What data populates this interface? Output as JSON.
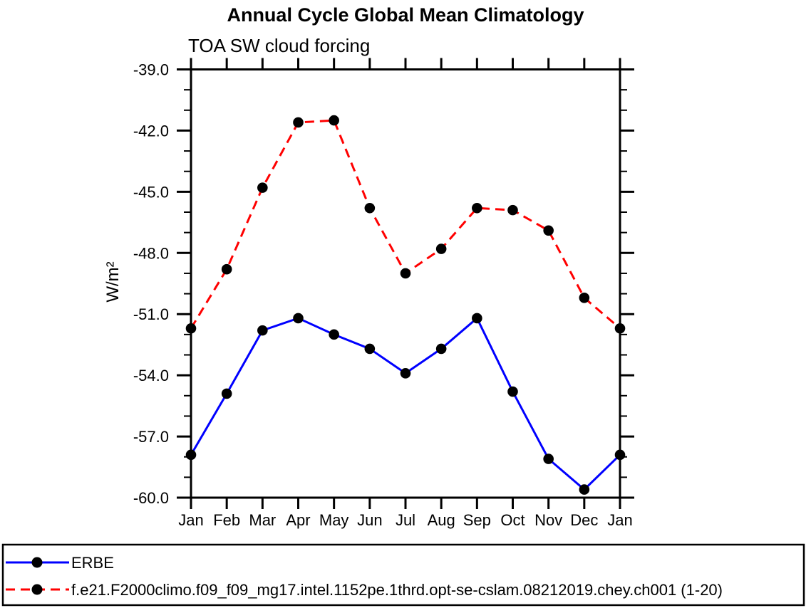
{
  "chart_data": {
    "type": "line",
    "title": "Annual Cycle Global Mean Climatology",
    "subtitle": "TOA SW cloud forcing",
    "ylabel": "W/m²",
    "xlabel": "",
    "categories": [
      "Jan",
      "Feb",
      "Mar",
      "Apr",
      "May",
      "Jun",
      "Jul",
      "Aug",
      "Sep",
      "Oct",
      "Nov",
      "Dec",
      "Jan"
    ],
    "ylim": [
      -60.0,
      -39.0
    ],
    "ytick_major_step": 3.0,
    "ytick_minor_step": 1.0,
    "yticks": [
      {
        "value": -39,
        "label": "-39.0"
      },
      {
        "value": -42,
        "label": "-42.0"
      },
      {
        "value": -45,
        "label": "-45.0"
      },
      {
        "value": -48,
        "label": "-48.0"
      },
      {
        "value": -51,
        "label": "-51.0"
      },
      {
        "value": -54,
        "label": "-54.0"
      },
      {
        "value": -57,
        "label": "-57.0"
      },
      {
        "value": -60,
        "label": "-60.0"
      }
    ],
    "grid": false,
    "legend_position": "bottom-box",
    "series": [
      {
        "name": "ERBE",
        "line_style": "solid",
        "line_color": "#0000ff",
        "marker": "filled-circle",
        "marker_color": "#000000",
        "values": [
          -57.9,
          -54.9,
          -51.8,
          -51.2,
          -52.0,
          -52.7,
          -53.9,
          -52.7,
          -51.2,
          -54.8,
          -58.1,
          -59.6,
          -57.9
        ]
      },
      {
        "name": "f.e21.F2000climo.f09_f09_mg17.intel.1152pe.1thrd.opt-se-cslam.08212019.chey.ch001 (1-20)",
        "line_style": "dashed",
        "line_color": "#ff0000",
        "marker": "filled-circle",
        "marker_color": "#000000",
        "values": [
          -51.7,
          -48.8,
          -44.8,
          -41.6,
          -41.5,
          -45.8,
          -49.0,
          -47.8,
          -45.8,
          -45.9,
          -46.9,
          -50.2,
          -51.7
        ]
      }
    ],
    "axis_color": "#000000"
  }
}
